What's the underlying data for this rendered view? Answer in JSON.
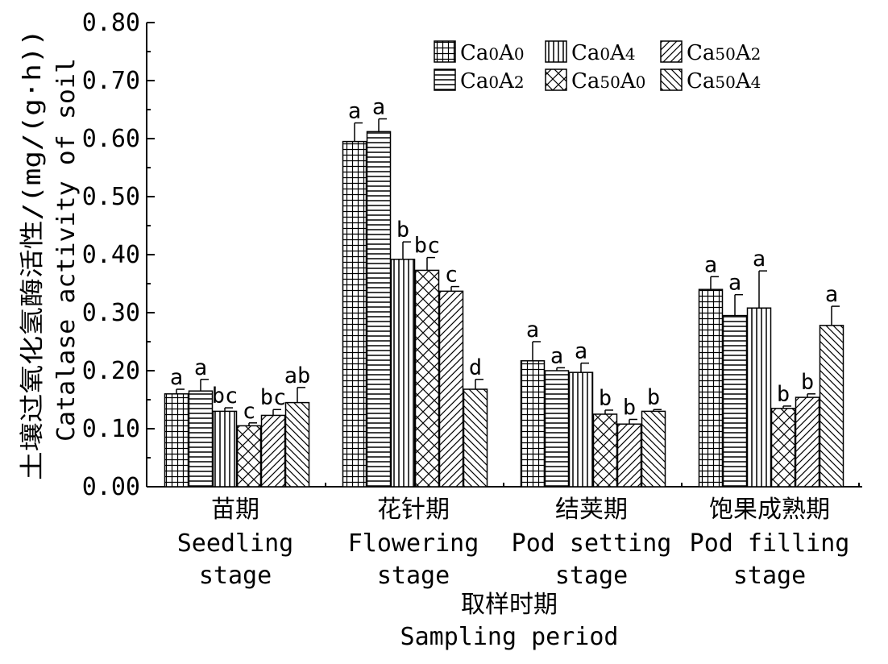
{
  "chart_data": {
    "type": "bar",
    "categories": [
      {
        "cn": "苗期",
        "en1": "Seedling",
        "en2": "stage"
      },
      {
        "cn": "花针期",
        "en1": "Flowering",
        "en2": "stage"
      },
      {
        "cn": "结荚期",
        "en1": "Pod setting",
        "en2": "stage"
      },
      {
        "cn": "饱果成熟期",
        "en1": "Pod filling",
        "en2": "stage"
      }
    ],
    "series": [
      {
        "name": "Ca0A0",
        "pattern": "grid",
        "values": [
          0.16,
          0.595,
          0.217,
          0.34
        ],
        "errors": [
          0.008,
          0.032,
          0.033,
          0.022
        ],
        "labels": [
          "a",
          "a",
          "a",
          "a"
        ]
      },
      {
        "name": "Ca0A2",
        "pattern": "hlines",
        "values": [
          0.165,
          0.612,
          0.2,
          0.295
        ],
        "errors": [
          0.02,
          0.022,
          0.005,
          0.036
        ],
        "labels": [
          "a",
          "a",
          "a",
          "a"
        ]
      },
      {
        "name": "Ca0A4",
        "pattern": "vlines",
        "values": [
          0.13,
          0.392,
          0.197,
          0.308
        ],
        "errors": [
          0.006,
          0.03,
          0.016,
          0.064
        ],
        "labels": [
          "bc",
          "b",
          "a",
          "a"
        ]
      },
      {
        "name": "Ca50A0",
        "pattern": "cross",
        "values": [
          0.105,
          0.373,
          0.125,
          0.135
        ],
        "errors": [
          0.005,
          0.022,
          0.007,
          0.004
        ],
        "labels": [
          "c",
          "bc",
          "b",
          "b"
        ]
      },
      {
        "name": "Ca50A2",
        "pattern": "fdiag",
        "values": [
          0.123,
          0.337,
          0.108,
          0.154
        ],
        "errors": [
          0.01,
          0.008,
          0.008,
          0.006
        ],
        "labels": [
          "bc",
          "c",
          "b",
          "b"
        ]
      },
      {
        "name": "Ca50A4",
        "pattern": "bdiag",
        "values": [
          0.145,
          0.168,
          0.13,
          0.278
        ],
        "errors": [
          0.026,
          0.017,
          0.003,
          0.033
        ],
        "labels": [
          "ab",
          "d",
          "b",
          "a"
        ]
      }
    ],
    "legend": [
      {
        "main": "Ca",
        "sub1": "0",
        "mid": "A",
        "sub2": "0"
      },
      {
        "main": "Ca",
        "sub1": "0",
        "mid": "A",
        "sub2": "2"
      },
      {
        "main": "Ca",
        "sub1": "0",
        "mid": "A",
        "sub2": "4"
      },
      {
        "main": "Ca",
        "sub1": "50",
        "mid": "A",
        "sub2": "0"
      },
      {
        "main": "Ca",
        "sub1": "50",
        "mid": "A",
        "sub2": "2"
      },
      {
        "main": "Ca",
        "sub1": "50",
        "mid": "A",
        "sub2": "4"
      }
    ],
    "yticks": [
      "0.00",
      "0.10",
      "0.20",
      "0.30",
      "0.40",
      "0.50",
      "0.60",
      "0.70",
      "0.80"
    ],
    "ylim": [
      0,
      0.8
    ],
    "ylabel_cn": "土壤过氧化氢酶活性/(mg/(g·h))",
    "ylabel_en": "Catalase activity of soil",
    "xlabel_cn": "取样时期",
    "xlabel_en": "Sampling period",
    "legend_position": "top-right"
  }
}
